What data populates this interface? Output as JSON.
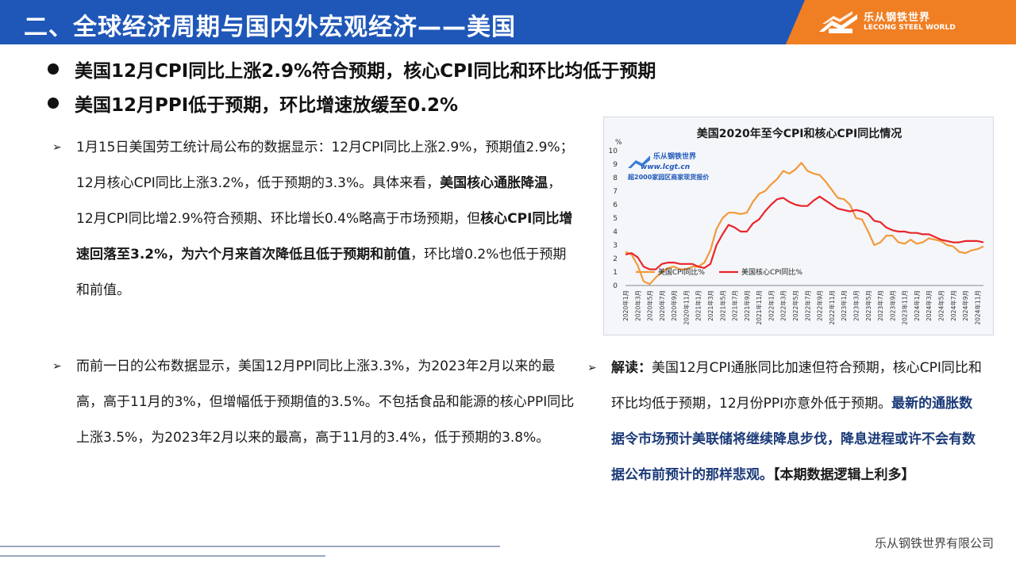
{
  "header": {
    "title": "二、全球经济周期与国内外宏观经济——美国",
    "logo_cn": "乐从钢铁世界",
    "logo_en": "LECONG STEEL WORLD",
    "colors": {
      "blue": "#1f57b8",
      "orange": "#f07f23"
    }
  },
  "headlines": [
    "美国12月CPI同比上涨2.9%符合预期，核心CPI同比和环比均低于预期",
    "美国12月PPI低于预期，环比增速放缓至0.2%"
  ],
  "para1": {
    "t1": "1月15日美国劳工统计局公布的数据显示：12月CPI同比上涨2.9%，预期值2.9%；12月核心CPI同比上涨3.2%，低于预期的3.3%。具体来看，",
    "b1": "美国核心通胀降温",
    "t2": "，12月CPI同比增2.9%符合预期、环比增长0.4%略高于市场预期，但",
    "b2": "核心CPI同比增速回落至3.2%，为六个月来首次降低且低于预期和前值",
    "t3": "，环比增0.2%也低于预期和前值。"
  },
  "para2": {
    "text": "而前一日的公布数据显示，美国12月PPI同比上涨3.3%，为2023年2月以来的最高，高于11月的3%，但增幅低于预期值的3.5%。不包括食品和能源的核心PPI同比上涨3.5%，为2023年2月以来的最高，高于11月的3.4%，低于预期的3.8%。"
  },
  "para3": {
    "label": "解读：",
    "t1": "美国12月CPI通胀同比加速但符合预期，核心CPI同比和环比均低于预期，12月份PPI亦意外低于预期。",
    "b1": "最新的通胀数据令市场预计美联储将继续降息步伐，降息进程或许不会有数据公布前预计的那样悲观。",
    "b2": "【本期数据逻辑上利多】"
  },
  "footer": {
    "company": "乐从钢铁世界有限公司"
  },
  "chart_data": {
    "type": "line",
    "title": "美国2020年至今CPI和核心CPI同比情况",
    "ylabel": "%",
    "ylim": [
      0,
      10
    ],
    "yticks": [
      0,
      1,
      2,
      3,
      4,
      5,
      6,
      7,
      8,
      9,
      10
    ],
    "watermark": {
      "name": "乐从钢铁世界",
      "url": "www.lcgt.cn",
      "tagline": "超2000家园区商家现货报价"
    },
    "legend_position": "bottom-left",
    "x_tick_labels": [
      "2020年1月",
      "2020年3月",
      "2020年5月",
      "2020年7月",
      "2020年9月",
      "2020年11月",
      "2021年1月",
      "2021年3月",
      "2021年5月",
      "2021年7月",
      "2021年9月",
      "2021年11月",
      "2022年1月",
      "2022年3月",
      "2022年5月",
      "2022年7月",
      "2022年9月",
      "2022年11月",
      "2023年1月",
      "2023年3月",
      "2023年5月",
      "2023年7月",
      "2023年9月",
      "2023年11月",
      "2024年1月",
      "2024年3月",
      "2024年5月",
      "2024年7月",
      "2024年9月",
      "2024年11月"
    ],
    "series": [
      {
        "name": "美国CPI同比%",
        "color": "#f39a3a",
        "values": [
          2.5,
          2.3,
          1.5,
          0.3,
          0.1,
          0.6,
          1.0,
          1.3,
          1.4,
          1.2,
          1.2,
          1.4,
          1.4,
          1.7,
          2.6,
          4.2,
          5.0,
          5.4,
          5.4,
          5.3,
          5.4,
          6.2,
          6.8,
          7.0,
          7.5,
          7.9,
          8.5,
          8.3,
          8.6,
          9.1,
          8.5,
          8.3,
          8.2,
          7.7,
          7.1,
          6.5,
          6.4,
          6.0,
          5.0,
          4.9,
          4.0,
          3.0,
          3.2,
          3.7,
          3.7,
          3.2,
          3.1,
          3.4,
          3.1,
          3.2,
          3.5,
          3.4,
          3.3,
          3.0,
          2.9,
          2.5,
          2.4,
          2.6,
          2.7,
          2.9
        ]
      },
      {
        "name": "美国核心CPI同比%",
        "color": "#e8262a",
        "values": [
          2.3,
          2.4,
          2.1,
          1.4,
          1.2,
          1.2,
          1.6,
          1.7,
          1.7,
          1.6,
          1.6,
          1.6,
          1.4,
          1.3,
          1.6,
          3.0,
          3.8,
          4.5,
          4.3,
          4.0,
          4.0,
          4.6,
          4.9,
          5.5,
          6.0,
          6.4,
          6.5,
          6.2,
          6.0,
          5.9,
          5.9,
          6.3,
          6.6,
          6.3,
          6.0,
          5.7,
          5.6,
          5.5,
          5.6,
          5.5,
          5.3,
          4.8,
          4.7,
          4.3,
          4.1,
          4.0,
          4.0,
          3.9,
          3.9,
          3.8,
          3.8,
          3.6,
          3.4,
          3.3,
          3.2,
          3.2,
          3.3,
          3.3,
          3.3,
          3.2
        ]
      }
    ]
  }
}
